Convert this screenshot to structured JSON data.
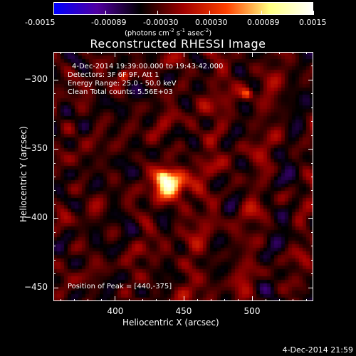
{
  "colorbar": {
    "tick_labels": [
      "-0.0015",
      "-0.00089",
      "-0.00030",
      "0.00030",
      "0.00089",
      "0.0015"
    ],
    "units_main": "(photons cm",
    "units_exp1": "-2",
    "units_mid": " s",
    "units_exp2": "-1",
    "units_mid2": " asec",
    "units_exp3": "-2",
    "units_end": ")"
  },
  "plot": {
    "title": "Reconstructed RHESSI Image",
    "annotations": [
      "4-Dec-2014 19:39:00.000 to 19:43:42.000",
      "Detectors: 3F 6F 9F, Att 1",
      "Energy Range: 25.0 - 50.0 keV",
      "Clean     Total counts: 5.56E+03"
    ],
    "peak_label": "Position of Peak = [440,-375]",
    "xlabel": "Heliocentric X (arcsec)",
    "ylabel": "Heliocentric Y (arcsec)",
    "xticks": [
      "400",
      "450",
      "500"
    ],
    "yticks": [
      "-300",
      "-350",
      "-400",
      "-450"
    ]
  },
  "chart_data": {
    "type": "heatmap",
    "title": "Reconstructed RHESSI Image",
    "xlabel": "Heliocentric X (arcsec)",
    "ylabel": "Heliocentric Y (arcsec)",
    "xlim": [
      355,
      545
    ],
    "ylim": [
      -460,
      -280
    ],
    "color_scale": {
      "min": -0.0015,
      "max": 0.0015
    },
    "peak": {
      "x": 440,
      "y": -375
    },
    "colormap": [
      "#0000ff",
      "#5000a0",
      "#000000",
      "#a00000",
      "#ff4000",
      "#ffff80",
      "#ffffff"
    ]
  },
  "footer": {
    "timestamp": "4-Dec-2014 21:59"
  }
}
